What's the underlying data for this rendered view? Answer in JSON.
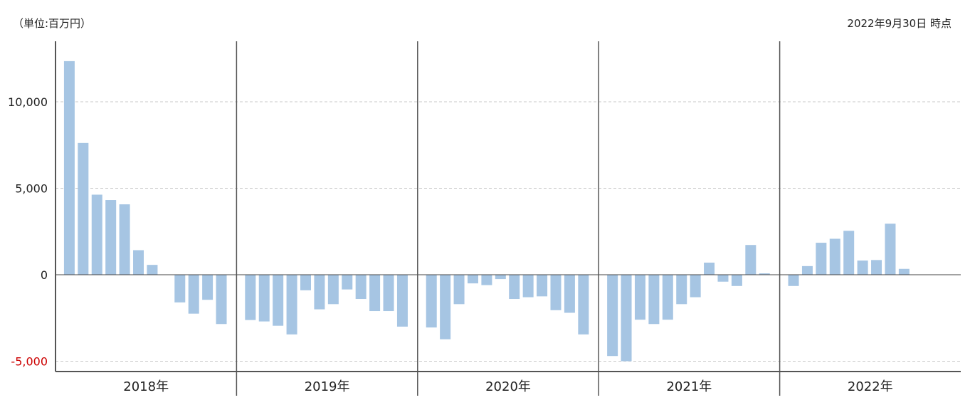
{
  "header": {
    "unit_label": "（単位:百万円）",
    "as_of_label": "2022年9月30日 時点"
  },
  "colors": {
    "bar": "#a6c5e3",
    "grid": "#c8c8c8",
    "axis": "#555555",
    "negative_tick": "#cc0000"
  },
  "chart_data": {
    "type": "bar",
    "title": "",
    "xlabel": "",
    "ylabel": "",
    "ylim": [
      -5500,
      13000
    ],
    "yticks": [
      {
        "value": 10000,
        "label": "10,000"
      },
      {
        "value": 5000,
        "label": "5,000"
      },
      {
        "value": 0,
        "label": "0"
      },
      {
        "value": -5000,
        "label": "-5,000"
      }
    ],
    "grid": true,
    "year_groups": [
      {
        "label": "2018年",
        "values": [
          12350,
          7620,
          4630,
          4320,
          4070,
          1420,
          570,
          null,
          -1600,
          -2250,
          -1450,
          -2850
        ]
      },
      {
        "label": "2019年",
        "values": [
          -2620,
          -2700,
          -2950,
          -3450,
          -900,
          -2000,
          -1700,
          -850,
          -1400,
          -2100,
          -2100,
          -3000
        ]
      },
      {
        "label": "2020年",
        "values": [
          -3050,
          -3730,
          -1700,
          -500,
          -600,
          -250,
          -1400,
          -1300,
          -1250,
          -2050,
          -2200,
          -3450
        ]
      },
      {
        "label": "2021年",
        "values": [
          -4700,
          -5000,
          -2600,
          -2850,
          -2600,
          -1700,
          -1300,
          700,
          -400,
          -650,
          1720,
          80
        ]
      },
      {
        "label": "2022年",
        "values": [
          -650,
          500,
          1850,
          2080,
          2540,
          820,
          850,
          2950,
          340
        ]
      }
    ]
  }
}
